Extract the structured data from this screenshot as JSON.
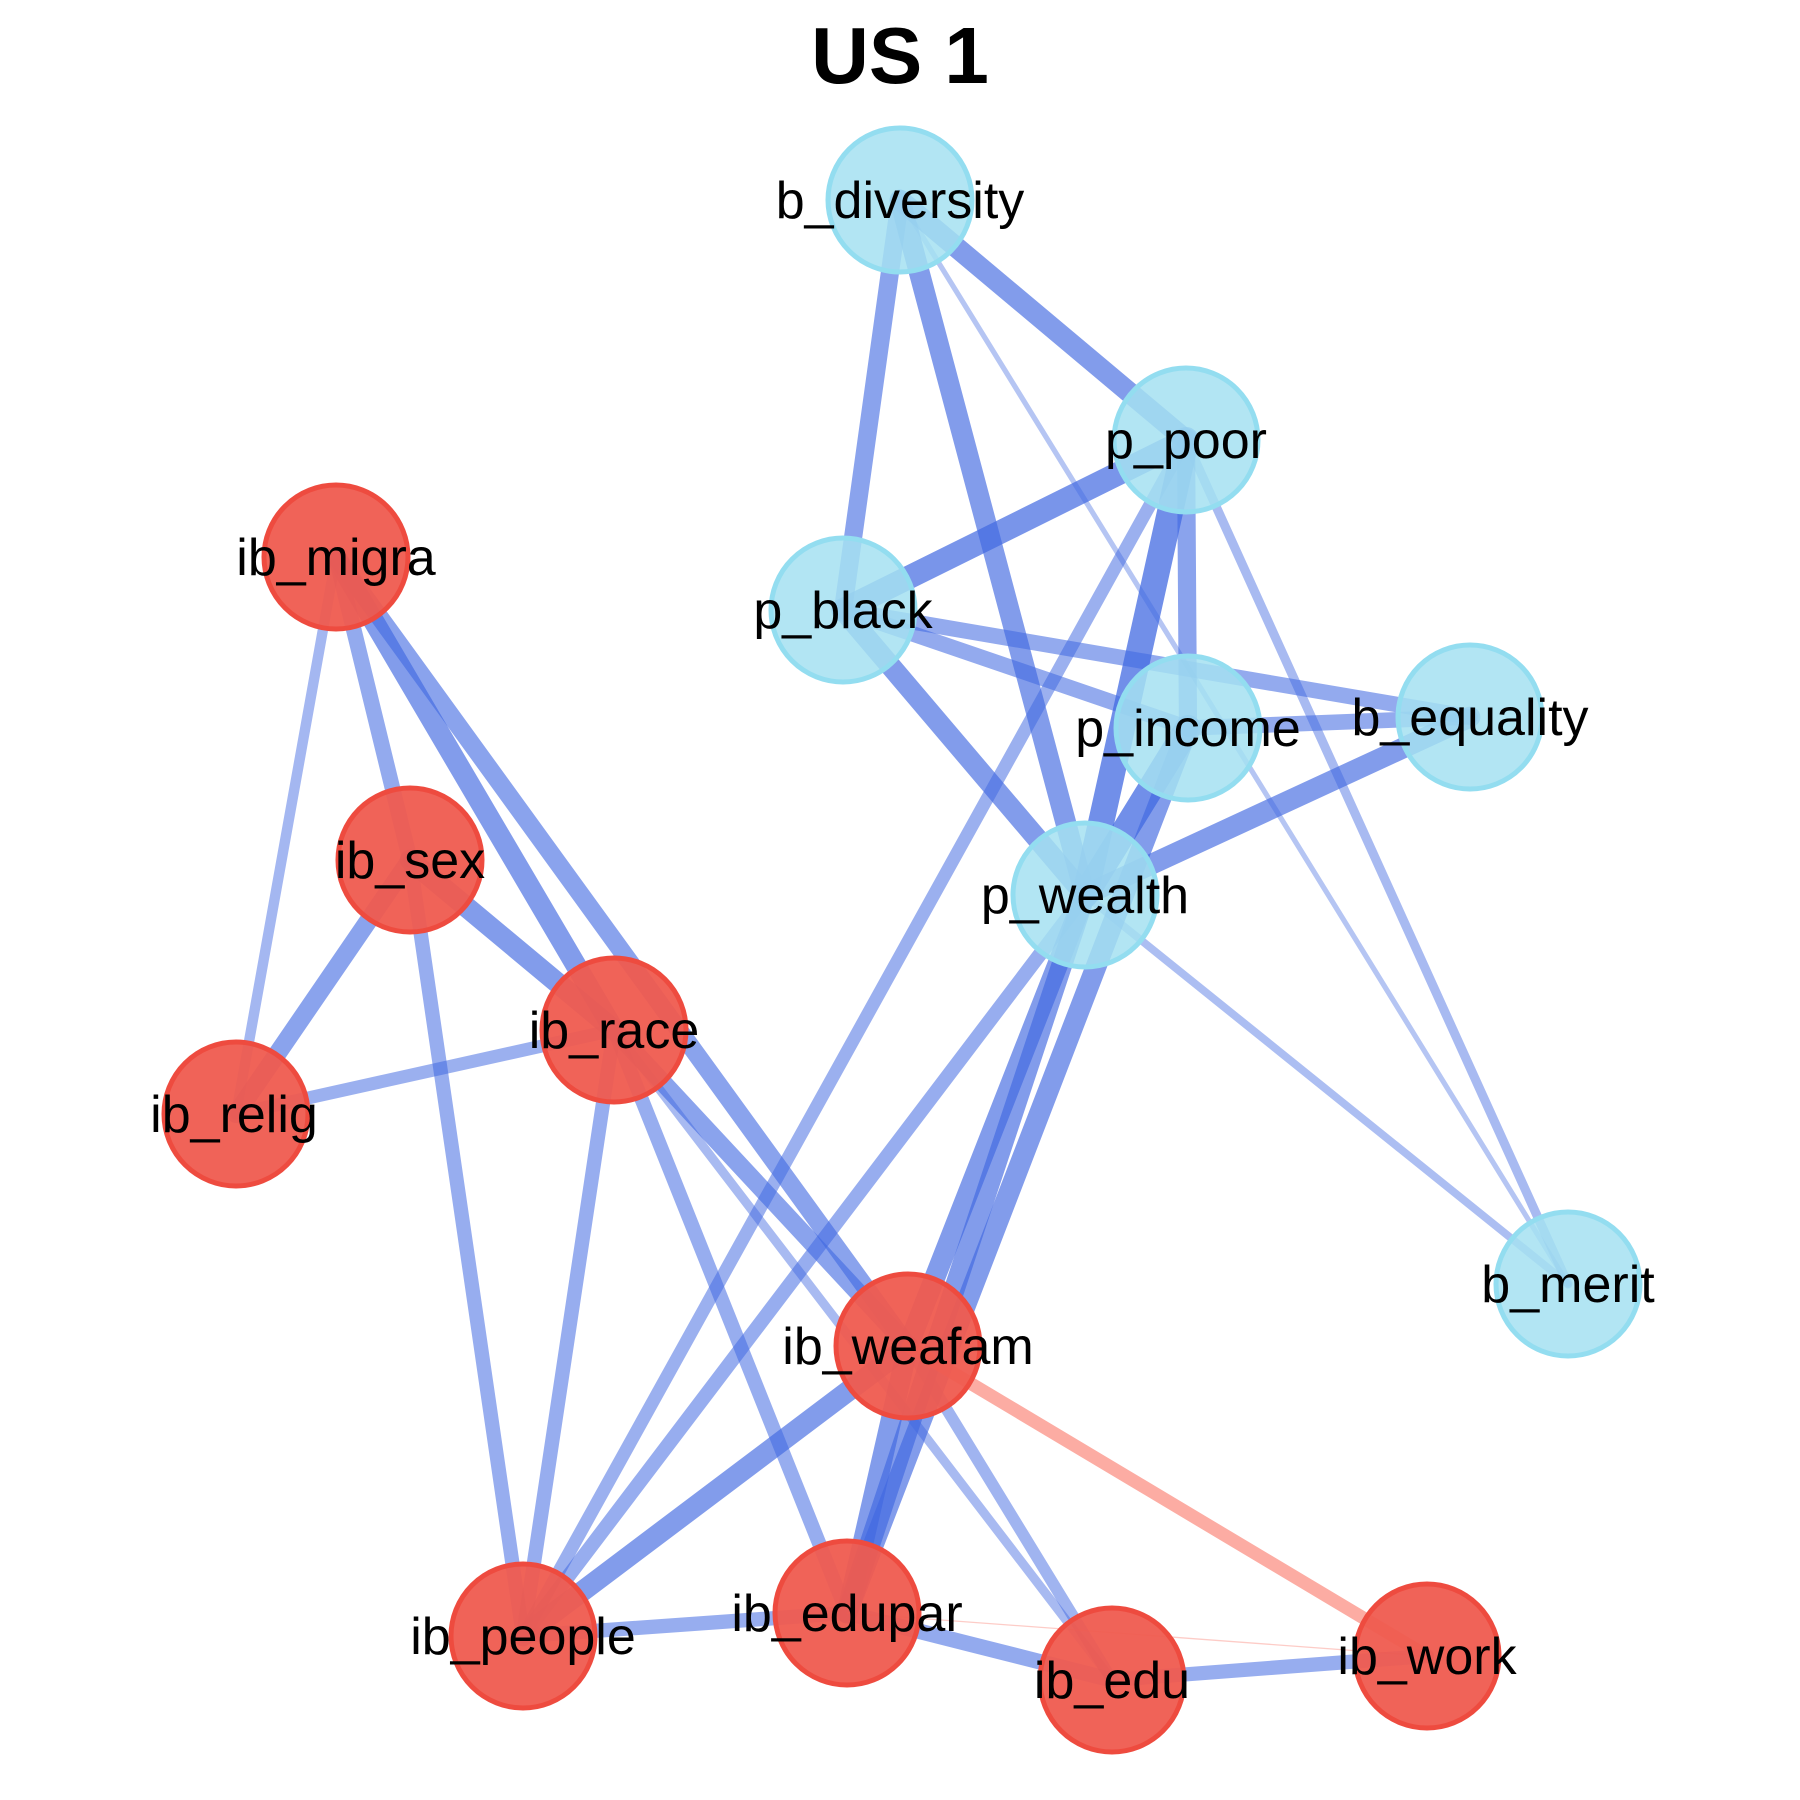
{
  "title": "US 1",
  "colors": {
    "positive_edge": "#4169E1",
    "negative_edge": "#FA8072",
    "group_ib_fill": "#EF5B4F",
    "group_ib_stroke": "#EE4B3F",
    "group_bp_fill": "#A4E0F1",
    "group_bp_stroke": "#93DDF0"
  },
  "nodes": [
    {
      "id": "b_diversity",
      "label": "b_diversity",
      "group": "bp"
    },
    {
      "id": "p_poor",
      "label": "p_poor",
      "group": "bp"
    },
    {
      "id": "p_black",
      "label": "p_black",
      "group": "bp"
    },
    {
      "id": "p_income",
      "label": "p_income",
      "group": "bp"
    },
    {
      "id": "b_equality",
      "label": "b_equality",
      "group": "bp"
    },
    {
      "id": "p_wealth",
      "label": "p_wealth",
      "group": "bp"
    },
    {
      "id": "b_merit",
      "label": "b_merit",
      "group": "bp"
    },
    {
      "id": "ib_migra",
      "label": "ib_migra",
      "group": "ib"
    },
    {
      "id": "ib_sex",
      "label": "ib_sex",
      "group": "ib"
    },
    {
      "id": "ib_race",
      "label": "ib_race",
      "group": "ib"
    },
    {
      "id": "ib_relig",
      "label": "ib_relig",
      "group": "ib"
    },
    {
      "id": "ib_weafam",
      "label": "ib_weafam",
      "group": "ib"
    },
    {
      "id": "ib_people",
      "label": "ib_people",
      "group": "ib"
    },
    {
      "id": "ib_edupar",
      "label": "ib_edupar",
      "group": "ib"
    },
    {
      "id": "ib_edu",
      "label": "ib_edu",
      "group": "ib"
    },
    {
      "id": "ib_work",
      "label": "ib_work",
      "group": "ib"
    }
  ],
  "edges": [
    {
      "source": "b_diversity",
      "target": "p_poor",
      "weight": 0.8,
      "sign": "positive"
    },
    {
      "source": "b_diversity",
      "target": "p_black",
      "weight": 0.7,
      "sign": "positive"
    },
    {
      "source": "b_diversity",
      "target": "p_wealth",
      "weight": 0.8,
      "sign": "positive"
    },
    {
      "source": "b_diversity",
      "target": "b_merit",
      "weight": 0.2,
      "sign": "positive"
    },
    {
      "source": "p_poor",
      "target": "p_black",
      "weight": 0.9,
      "sign": "positive"
    },
    {
      "source": "p_poor",
      "target": "p_income",
      "weight": 0.7,
      "sign": "positive"
    },
    {
      "source": "p_poor",
      "target": "p_wealth",
      "weight": 1.0,
      "sign": "positive"
    },
    {
      "source": "p_poor",
      "target": "b_merit",
      "weight": 0.35,
      "sign": "positive"
    },
    {
      "source": "p_poor",
      "target": "ib_people",
      "weight": 0.5,
      "sign": "positive"
    },
    {
      "source": "p_black",
      "target": "p_income",
      "weight": 0.6,
      "sign": "positive"
    },
    {
      "source": "p_black",
      "target": "b_equality",
      "weight": 0.6,
      "sign": "positive"
    },
    {
      "source": "p_black",
      "target": "p_wealth",
      "weight": 0.8,
      "sign": "positive"
    },
    {
      "source": "p_income",
      "target": "b_equality",
      "weight": 0.6,
      "sign": "positive"
    },
    {
      "source": "p_income",
      "target": "p_wealth",
      "weight": 1.0,
      "sign": "positive"
    },
    {
      "source": "p_income",
      "target": "ib_edupar",
      "weight": 0.8,
      "sign": "positive"
    },
    {
      "source": "b_equality",
      "target": "p_wealth",
      "weight": 0.8,
      "sign": "positive"
    },
    {
      "source": "p_wealth",
      "target": "b_merit",
      "weight": 0.3,
      "sign": "positive"
    },
    {
      "source": "p_wealth",
      "target": "ib_weafam",
      "weight": 0.8,
      "sign": "positive"
    },
    {
      "source": "p_wealth",
      "target": "ib_edupar",
      "weight": 0.8,
      "sign": "positive"
    },
    {
      "source": "p_wealth",
      "target": "ib_people",
      "weight": 0.55,
      "sign": "positive"
    },
    {
      "source": "ib_migra",
      "target": "ib_sex",
      "weight": 0.6,
      "sign": "positive"
    },
    {
      "source": "ib_migra",
      "target": "ib_race",
      "weight": 0.8,
      "sign": "positive"
    },
    {
      "source": "ib_migra",
      "target": "ib_relig",
      "weight": 0.4,
      "sign": "positive"
    },
    {
      "source": "ib_migra",
      "target": "ib_weafam",
      "weight": 0.7,
      "sign": "positive"
    },
    {
      "source": "ib_sex",
      "target": "ib_race",
      "weight": 0.8,
      "sign": "positive"
    },
    {
      "source": "ib_sex",
      "target": "ib_relig",
      "weight": 0.7,
      "sign": "positive"
    },
    {
      "source": "ib_sex",
      "target": "ib_people",
      "weight": 0.55,
      "sign": "positive"
    },
    {
      "source": "ib_race",
      "target": "ib_relig",
      "weight": 0.5,
      "sign": "positive"
    },
    {
      "source": "ib_race",
      "target": "ib_weafam",
      "weight": 0.7,
      "sign": "positive"
    },
    {
      "source": "ib_race",
      "target": "ib_people",
      "weight": 0.55,
      "sign": "positive"
    },
    {
      "source": "ib_race",
      "target": "ib_edupar",
      "weight": 0.55,
      "sign": "positive"
    },
    {
      "source": "ib_race",
      "target": "ib_edu",
      "weight": 0.35,
      "sign": "positive"
    },
    {
      "source": "ib_weafam",
      "target": "ib_people",
      "weight": 0.8,
      "sign": "positive"
    },
    {
      "source": "ib_weafam",
      "target": "ib_edupar",
      "weight": 0.8,
      "sign": "positive"
    },
    {
      "source": "ib_weafam",
      "target": "ib_edu",
      "weight": 0.45,
      "sign": "positive"
    },
    {
      "source": "ib_weafam",
      "target": "ib_work",
      "weight": 0.5,
      "sign": "negative"
    },
    {
      "source": "ib_people",
      "target": "ib_edupar",
      "weight": 0.55,
      "sign": "positive"
    },
    {
      "source": "ib_edupar",
      "target": "ib_edu",
      "weight": 0.6,
      "sign": "positive"
    },
    {
      "source": "ib_edupar",
      "target": "ib_work",
      "weight": 0.05,
      "sign": "negative"
    },
    {
      "source": "ib_edu",
      "target": "ib_work",
      "weight": 0.55,
      "sign": "positive"
    }
  ]
}
